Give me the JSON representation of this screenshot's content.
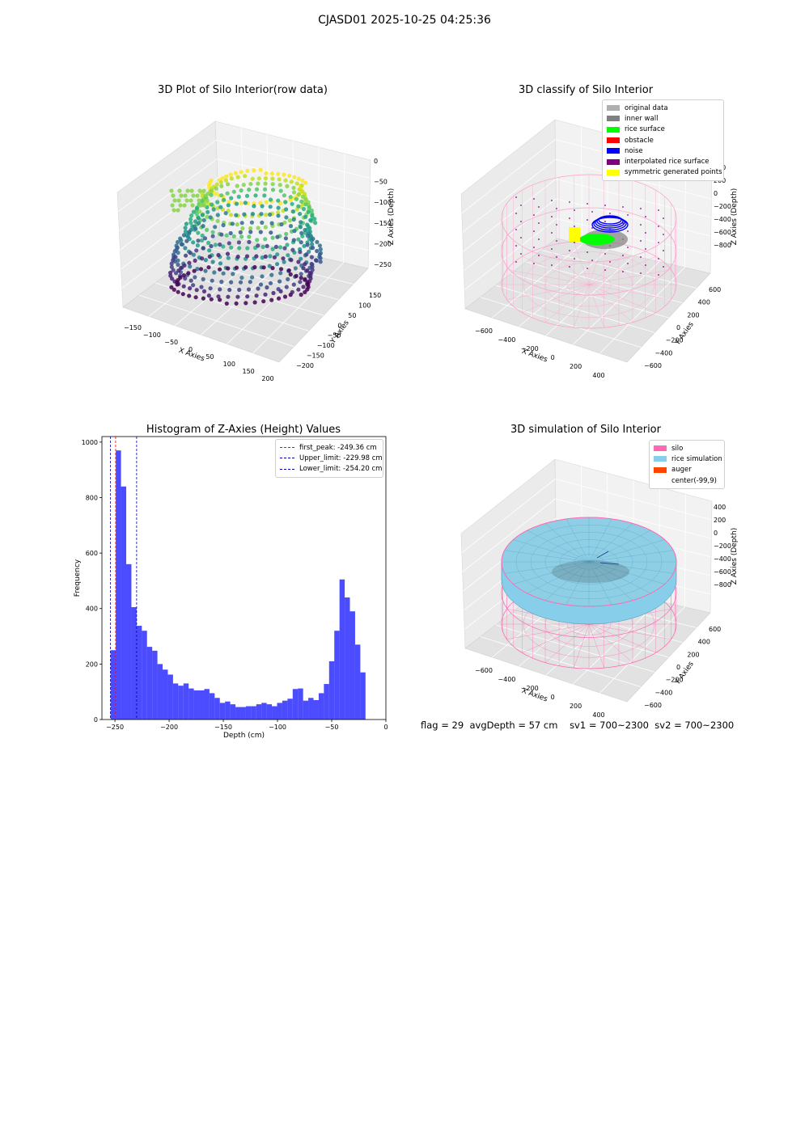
{
  "suptitle": "CJASD01 2025-10-25 04:25:36",
  "panel1": {
    "title": "3D Plot of Silo Interior(row data)",
    "xlabel": "X Axies",
    "ylabel": "Y Axies",
    "zlabel": "Z Axies (Depth)",
    "xticks": [
      "−150",
      "−100",
      "−50",
      "0",
      "50",
      "100",
      "150",
      "200"
    ],
    "yticks": [
      "−200",
      "−150",
      "−100",
      "−50",
      "0",
      "50",
      "100",
      "150"
    ],
    "zticks": [
      "0",
      "−50",
      "−100",
      "−150",
      "−200",
      "−250"
    ]
  },
  "panel2": {
    "title": "3D classify of Silo Interior",
    "xlabel": "X Axies",
    "ylabel": "Y Axies",
    "zlabel": "Z Axies (Depth)",
    "xticks": [
      "−600",
      "−400",
      "−200",
      "0",
      "200",
      "400"
    ],
    "yticks": [
      "−600",
      "−400",
      "−200",
      "0",
      "200",
      "400",
      "600"
    ],
    "zticks": [
      "400",
      "200",
      "0",
      "−200",
      "−400",
      "−600",
      "−800"
    ],
    "legend": [
      {
        "label": "original data",
        "color": "#b0b0b0"
      },
      {
        "label": "inner wall",
        "color": "#808080"
      },
      {
        "label": "rice surface",
        "color": "#00ff00"
      },
      {
        "label": "obstacle",
        "color": "#ff0000"
      },
      {
        "label": "noise",
        "color": "#0000ff"
      },
      {
        "label": "interpolated rice surface",
        "color": "#800080"
      },
      {
        "label": "symmetric generated points",
        "color": "#ffff00"
      }
    ]
  },
  "panel4": {
    "title": "3D simulation of Silo Interior",
    "xlabel": "X Axies",
    "ylabel": "Y Axies",
    "zlabel": "Z Axies (Depth)",
    "xticks": [
      "−600",
      "−400",
      "−200",
      "0",
      "200",
      "400"
    ],
    "yticks": [
      "−600",
      "−400",
      "−200",
      "0",
      "200",
      "400",
      "600"
    ],
    "zticks": [
      "400",
      "200",
      "0",
      "−200",
      "−400",
      "−600",
      "−800"
    ],
    "legend": [
      {
        "label": "silo",
        "color": "#ff69b4"
      },
      {
        "label": "rice simulation",
        "color": "#87ceeb"
      },
      {
        "label": "auger",
        "color": "#ff4500"
      },
      {
        "label": "center(-99,9)",
        "color": "#ffffff"
      }
    ]
  },
  "chart_data": {
    "type": "bar",
    "title": "Histogram of Z-Axies (Height) Values",
    "xlabel": "Depth (cm)",
    "ylabel": "Frequency",
    "xlim": [
      -262,
      0
    ],
    "ylim": [
      0,
      1020
    ],
    "xticks": [
      -250,
      -200,
      -150,
      -100,
      -50,
      0
    ],
    "yticks": [
      0,
      200,
      400,
      600,
      800,
      1000
    ],
    "bin_start": -254,
    "bin_width": 4.8,
    "values": [
      250,
      970,
      840,
      560,
      405,
      338,
      320,
      262,
      248,
      200,
      180,
      162,
      130,
      122,
      130,
      112,
      105,
      105,
      110,
      95,
      78,
      60,
      65,
      55,
      45,
      45,
      48,
      48,
      55,
      60,
      55,
      48,
      60,
      68,
      75,
      110,
      112,
      68,
      78,
      70,
      95,
      128,
      210,
      320,
      505,
      440,
      390,
      270,
      170
    ],
    "color": "#0000ff",
    "vlines": [
      {
        "label": "first_peak: -249.36 cm",
        "x": -249.36,
        "color": "#ff0000"
      },
      {
        "label": "Upper_limit: -229.98 cm",
        "x": -229.98,
        "color": "#0000aa"
      },
      {
        "label": "Lower_limit: -254.20 cm",
        "x": -254.2,
        "color": "#0000aa"
      }
    ]
  },
  "footer": {
    "flag": "flag = 29",
    "avg": "avgDepth = 57 cm",
    "sv1": "sv1 = 700~2300",
    "sv2": "sv2 = 700~2300"
  }
}
